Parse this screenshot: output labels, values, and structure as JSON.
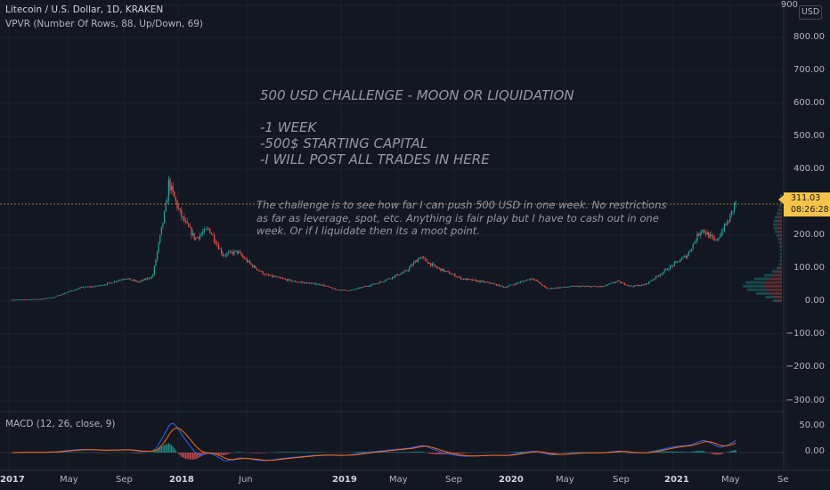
{
  "header": {
    "symbol_line": "Litecoin / U.S. Dollar, 1D, KRAKEN",
    "indicator_line": "VPVR (Number Of Rows, 88, Up/Down, 69)"
  },
  "macd_label": "MACD (12, 26, close, 9)",
  "currency_button": "USD",
  "last_price": "311.03",
  "countdown": "08:26:28",
  "notes": {
    "title": "500 USD CHALLENGE - MOON OR LIQUIDATION\n\n-1 WEEK\n-500$ STARTING CAPITAL\n-I WILL POST ALL TRADES IN HERE",
    "body": "The challenge is to see how far I can push 500 USD in one week. No restrictions\nas far as leverage, spot, etc. Anything is fair play but I have to cash out in one\nweek. Or if I liquidate then its a moot point."
  },
  "price_axis": [
    "900",
    "800.00",
    "700.00",
    "600.00",
    "500.00",
    "400.00",
    "200.00",
    "100.00",
    "0.00",
    "−100.00",
    "−200.00",
    "−300.00"
  ],
  "macd_axis": [
    "50.00",
    "0.00"
  ],
  "time_axis": [
    {
      "label": "2017",
      "bold": true
    },
    {
      "label": "May",
      "bold": false
    },
    {
      "label": "Sep",
      "bold": false
    },
    {
      "label": "2018",
      "bold": true
    },
    {
      "label": "Jun",
      "bold": false
    },
    {
      "label": "2019",
      "bold": true
    },
    {
      "label": "May",
      "bold": false
    },
    {
      "label": "Sep",
      "bold": false
    },
    {
      "label": "2020",
      "bold": true
    },
    {
      "label": "May",
      "bold": false
    },
    {
      "label": "Sep",
      "bold": false
    },
    {
      "label": "2021",
      "bold": true
    },
    {
      "label": "May",
      "bold": false
    },
    {
      "label": "Se",
      "bold": false
    }
  ],
  "colors": {
    "background": "#131722",
    "up": "#26a69a",
    "down": "#ef5350",
    "macd_line": "#2962ff",
    "signal_line": "#ff6d00",
    "last_price_tag": "#f7c44a"
  },
  "chart_data": {
    "type": "candlestick",
    "price_series": [
      [
        "2017-01",
        4
      ],
      [
        "2017-03",
        6
      ],
      [
        "2017-04",
        12
      ],
      [
        "2017-05",
        28
      ],
      [
        "2017-06",
        42
      ],
      [
        "2017-07",
        45
      ],
      [
        "2017-08",
        55
      ],
      [
        "2017-09",
        70
      ],
      [
        "2017-10",
        58
      ],
      [
        "2017-11",
        75
      ],
      [
        "2017-12",
        300
      ],
      [
        "2017-12-19",
        360
      ],
      [
        "2018-01",
        260
      ],
      [
        "2018-02",
        190
      ],
      [
        "2018-03",
        220
      ],
      [
        "2018-04",
        140
      ],
      [
        "2018-05",
        150
      ],
      [
        "2018-06",
        110
      ],
      [
        "2018-07",
        80
      ],
      [
        "2018-09",
        60
      ],
      [
        "2018-11",
        50
      ],
      [
        "2018-12",
        35
      ],
      [
        "2019-01",
        32
      ],
      [
        "2019-03",
        55
      ],
      [
        "2019-05",
        90
      ],
      [
        "2019-06",
        135
      ],
      [
        "2019-07",
        105
      ],
      [
        "2019-09",
        68
      ],
      [
        "2019-11",
        55
      ],
      [
        "2019-12",
        42
      ],
      [
        "2020-02",
        70
      ],
      [
        "2020-03",
        38
      ],
      [
        "2020-05",
        45
      ],
      [
        "2020-07",
        44
      ],
      [
        "2020-08",
        60
      ],
      [
        "2020-09",
        45
      ],
      [
        "2020-10",
        50
      ],
      [
        "2020-11",
        80
      ],
      [
        "2021-01",
        140
      ],
      [
        "2021-02",
        220
      ],
      [
        "2021-03",
        180
      ],
      [
        "2021-04",
        250
      ],
      [
        "2021-04-30",
        311.03
      ]
    ],
    "y_range": [
      -300,
      900
    ],
    "macd": {
      "params": "12, 26, close, 9",
      "range": [
        -20,
        70
      ]
    },
    "volume_profile": {
      "rows": 88,
      "value_area_pct": 69,
      "peak_price": 45
    }
  }
}
